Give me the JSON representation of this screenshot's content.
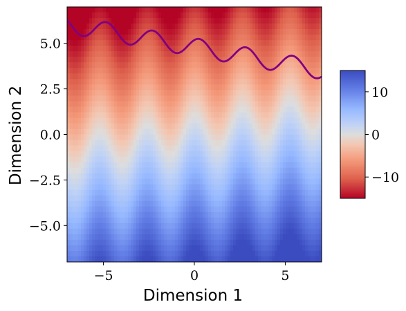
{
  "chart_data": {
    "type": "heatmap",
    "title": "",
    "xlabel": "Dimension 1",
    "ylabel": "Dimension 2",
    "xlim": [
      -7,
      7
    ],
    "ylim": [
      -7,
      7
    ],
    "x_ticks": [
      -5,
      0,
      5
    ],
    "x_tick_labels": [
      "−5",
      "0",
      "5"
    ],
    "y_ticks": [
      -5.0,
      -2.5,
      0.0,
      2.5,
      5.0
    ],
    "y_tick_labels": [
      "−5.0",
      "−2.5",
      "0.0",
      "2.5",
      "5.0"
    ],
    "colormap": "coolwarm_r",
    "color_range": [
      -15,
      15
    ],
    "colorbar": {
      "ticks": [
        10,
        0,
        -10
      ],
      "tick_labels": [
        "10",
        "0",
        "−10"
      ]
    },
    "field": {
      "description_of_values": "value = -2*y + 1.5*sin(2*x) - 0.5*(x + 7)*0 ... rendered from formula below",
      "formula": "v = -2.1*y + 2.0*cos(2.4*x) + 0.35*x"
    },
    "contour": {
      "color": "#800080",
      "level_curve": "y = 6.05 - 0.18*(x + 7) + 0.5*sin(2.45*x + 0.9)",
      "x_range": [
        -6.95,
        7
      ]
    },
    "grid": false
  }
}
